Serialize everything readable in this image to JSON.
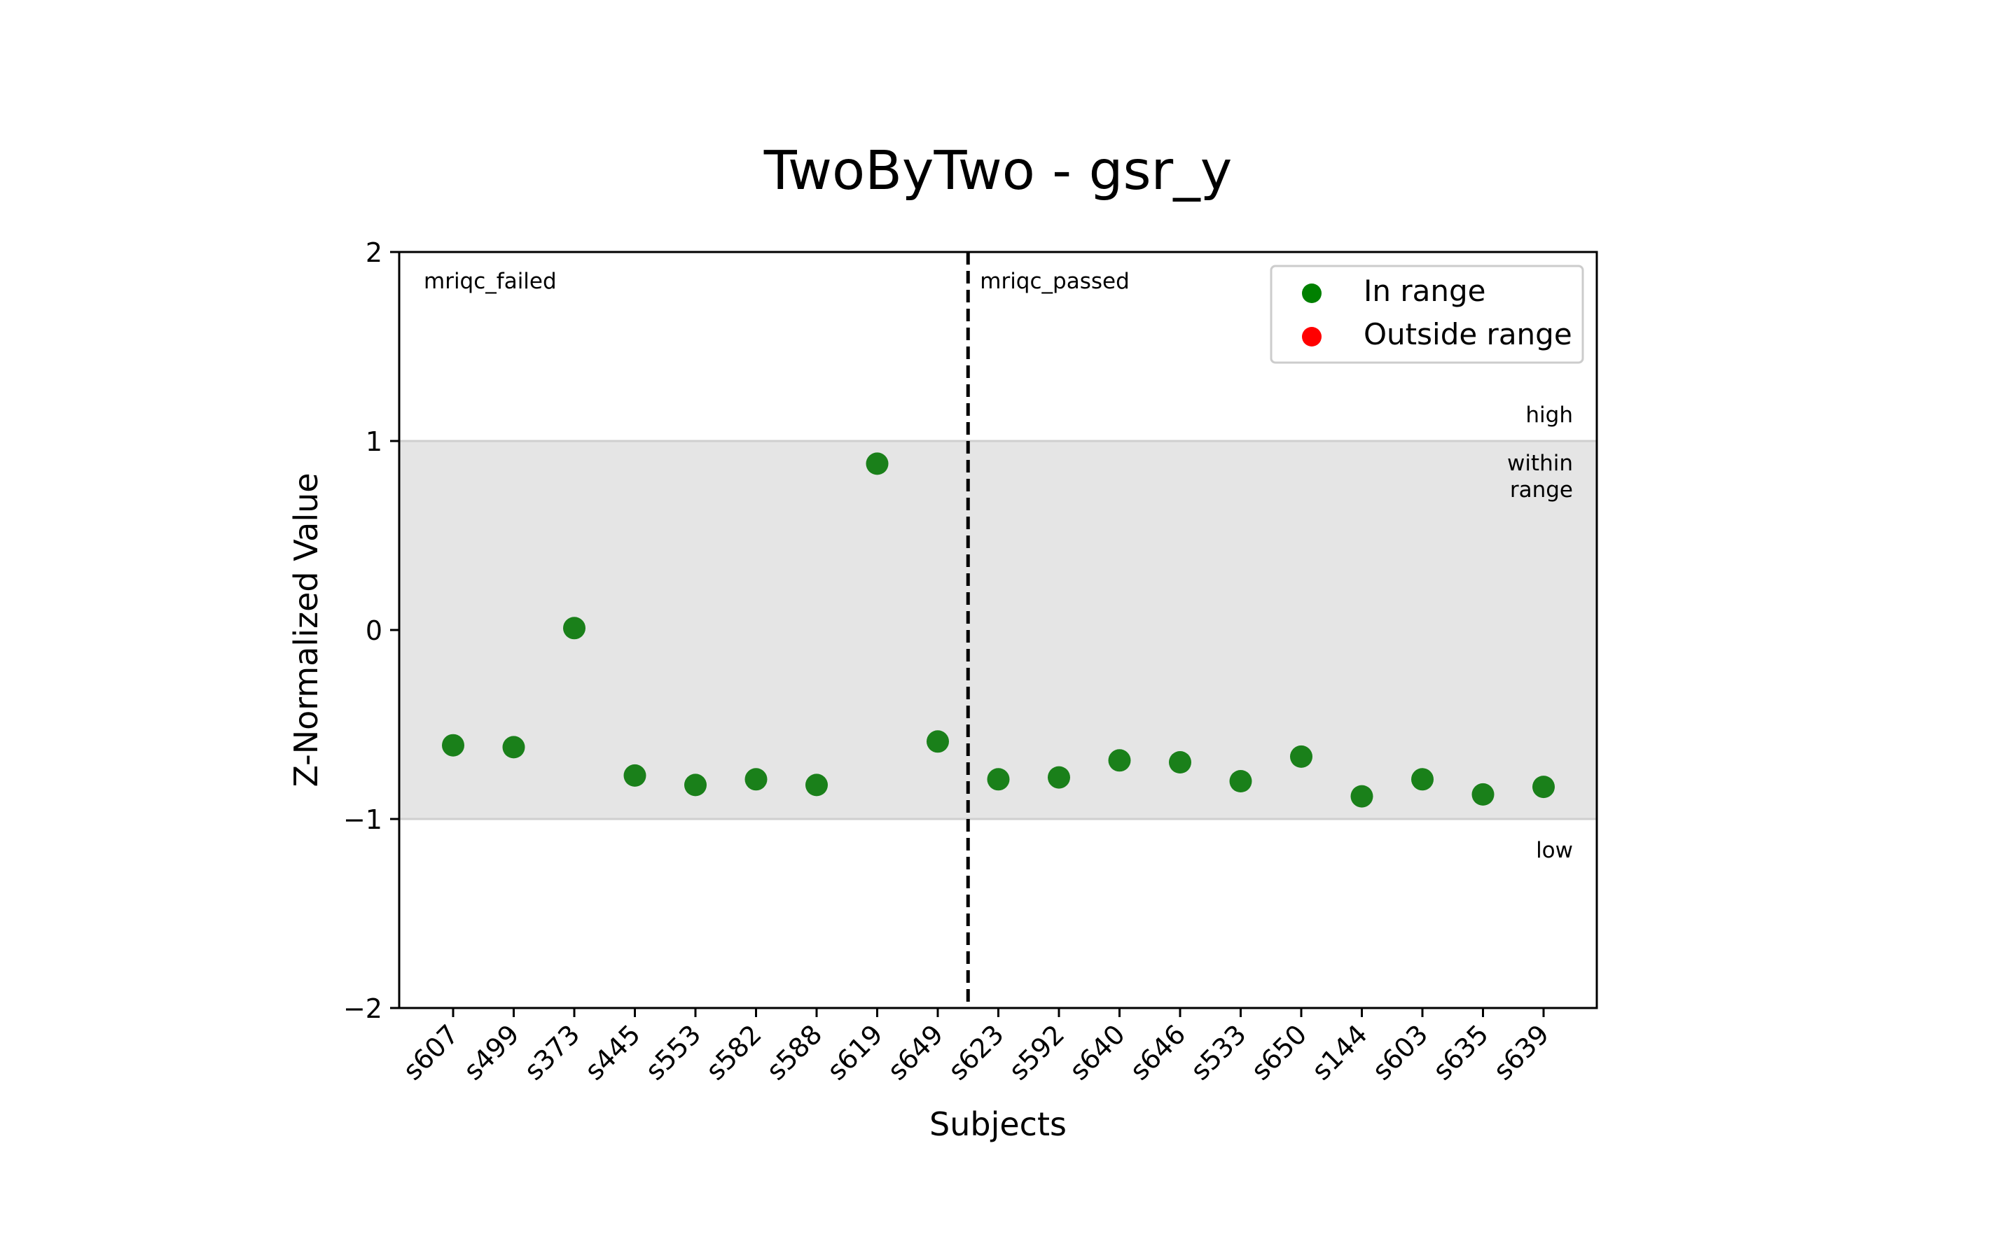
{
  "chart_data": {
    "type": "scatter",
    "title": "TwoByTwo - gsr_y",
    "xlabel": "Subjects",
    "ylabel": "Z-Normalized Value",
    "ylim": [
      -2,
      2
    ],
    "yticks": [
      2,
      1,
      0,
      -1,
      -2
    ],
    "ytick_labels": [
      "2",
      "1",
      "0",
      "−1",
      "−2"
    ],
    "grid": false,
    "legend_position": "top-right",
    "legend": [
      {
        "label": "In range",
        "color": "#008000"
      },
      {
        "label": "Outside range",
        "color": "#ff0000"
      }
    ],
    "range_band": {
      "low": -1,
      "high": 1,
      "color": "#e5e5e5"
    },
    "band_labels": {
      "high": "high",
      "within": [
        "within",
        "range"
      ],
      "low": "low"
    },
    "groups": [
      {
        "label": "mriqc_failed"
      },
      {
        "label": "mriqc_passed"
      }
    ],
    "group_divider_after_index": 8,
    "categories": [
      "s607",
      "s499",
      "s373",
      "s445",
      "s553",
      "s582",
      "s588",
      "s619",
      "s649",
      "s623",
      "s592",
      "s640",
      "s646",
      "s533",
      "s650",
      "s144",
      "s603",
      "s635",
      "s639"
    ],
    "series": [
      {
        "name": "In range",
        "color": "#1a801a",
        "values": [
          -0.61,
          -0.62,
          0.01,
          -0.77,
          -0.82,
          -0.79,
          -0.82,
          0.88,
          -0.59,
          -0.79,
          -0.78,
          -0.69,
          -0.7,
          -0.8,
          -0.67,
          -0.88,
          -0.79,
          -0.87,
          -0.83
        ]
      }
    ]
  }
}
